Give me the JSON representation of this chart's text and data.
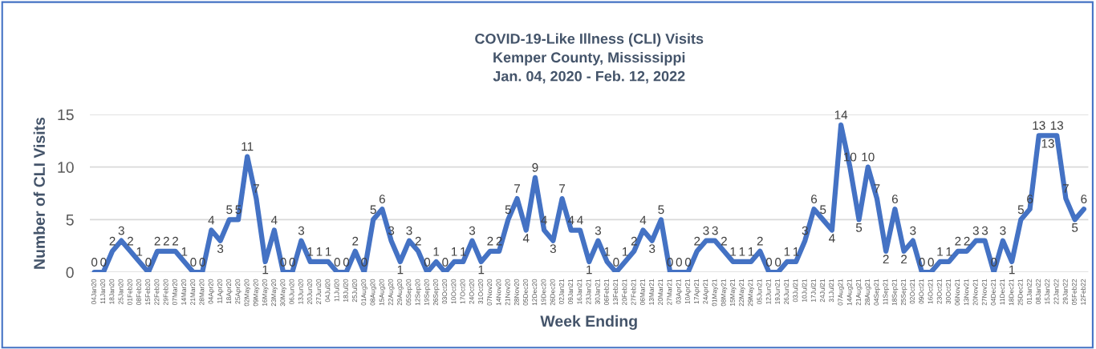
{
  "chart_data": {
    "type": "line",
    "title": "COVID-19-Like Illness (CLI) Visits\nKemper County, Mississippi\nJan. 04, 2020 - Feb. 12, 2022",
    "xlabel": "Week Ending",
    "ylabel": "Number of CLI Visits",
    "categories": [
      "04Jan20",
      "11Jan20",
      "18Jan20",
      "25Jan20",
      "01Feb20",
      "08Feb20",
      "15Feb20",
      "22Feb20",
      "29Feb20",
      "07Mar20",
      "14Mar20",
      "21Mar20",
      "28Mar20",
      "04Apr20",
      "11Apr20",
      "18Apr20",
      "25Apr20",
      "02May20",
      "09May20",
      "16May20",
      "23May20",
      "30May20",
      "06Jun20",
      "13Jun20",
      "20Jun20",
      "27Jun20",
      "04Jul20",
      "11Jul20",
      "18Jul20",
      "25Jul20",
      "01Aug20",
      "08Aug20",
      "15Aug20",
      "22Aug20",
      "29Aug20",
      "05Sep20",
      "12Sep20",
      "19Sep20",
      "26Sep20",
      "03Oct20",
      "10Oct20",
      "17Oct20",
      "24Oct20",
      "31Oct20",
      "07Nov20",
      "14Nov20",
      "21Nov20",
      "28Nov20",
      "05Dec20",
      "12Dec20",
      "19Dec20",
      "26Dec20",
      "02Jan21",
      "09Jan21",
      "16Jan21",
      "23Jan21",
      "30Jan21",
      "06Feb21",
      "13Feb21",
      "20Feb21",
      "27Feb21",
      "06Mar21",
      "13Mar21",
      "20Mar21",
      "27Mar21",
      "03Apr21",
      "10Apr21",
      "17Apr21",
      "24Apr21",
      "01May21",
      "08May21",
      "15May21",
      "22May21",
      "29May21",
      "05Jun21",
      "12Jun21",
      "19Jun21",
      "26Jun21",
      "03Jul21",
      "10Jul21",
      "17Jul21",
      "24Jul21",
      "31Jul21",
      "07Aug21",
      "14Aug21",
      "21Aug21",
      "28Aug21",
      "04Sep21",
      "11Sep21",
      "18Sep21",
      "25Sep21",
      "02Oct21",
      "09Oct21",
      "16Oct21",
      "23Oct21",
      "30Oct21",
      "06Nov21",
      "13Nov21",
      "20Nov21",
      "27Nov21",
      "04Dec21",
      "11Dec21",
      "18Dec21",
      "25Dec21",
      "01Jan22",
      "08Jan22",
      "15Jan22",
      "22Jan22",
      "29Jan22",
      "05Feb22",
      "12Feb22"
    ],
    "series": [
      {
        "color": "#4472c4",
        "values": [
          0,
          0,
          2,
          3,
          2,
          1,
          0,
          2,
          2,
          2,
          1,
          0,
          0,
          4,
          3,
          5,
          5,
          11,
          7,
          1,
          4,
          0,
          0,
          3,
          1,
          1,
          1,
          0,
          0,
          2,
          0,
          5,
          6,
          3,
          1,
          3,
          2,
          0,
          1,
          0,
          1,
          1,
          3,
          1,
          2,
          2,
          5,
          7,
          4,
          9,
          4,
          3,
          7,
          4,
          4,
          1,
          3,
          1,
          0,
          1,
          2,
          4,
          3,
          5,
          0,
          0,
          0,
          2,
          3,
          3,
          2,
          1,
          1,
          1,
          2,
          0,
          0,
          1,
          1,
          3,
          6,
          5,
          4,
          14,
          10,
          5,
          10,
          7,
          2,
          6,
          2,
          3,
          0,
          0,
          1,
          1,
          2,
          2,
          3,
          3,
          0,
          3,
          1,
          5,
          6,
          13,
          13,
          13,
          7,
          5,
          6
        ]
      }
    ],
    "ylim": [
      0,
      15
    ],
    "yticks": [
      0,
      5,
      10,
      15
    ],
    "grid": "y",
    "data_labels": true,
    "marker": "none",
    "line_style": "solid",
    "legend": false
  }
}
